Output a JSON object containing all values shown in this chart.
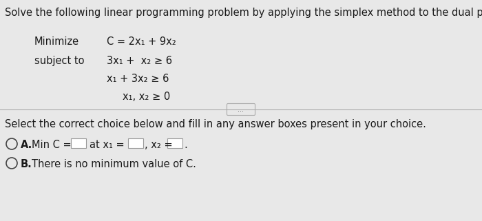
{
  "bg_color": "#e8e8e8",
  "font_color": "#1a1a1a",
  "title": "Solve the following linear programming problem by applying the simplex method to the dual problem.",
  "minimize_label": "Minimize",
  "minimize_eq": "C = 2x₁ + 9x₂",
  "subject_label": "subject to",
  "constraint1": "3x₁ +  x₂ ≥ 6",
  "constraint2": "x₁ + 3x₂ ≥ 6",
  "constraint3": "x₁, x₂ ≥ 0",
  "select_text": "Select the correct choice below and fill in any answer boxes present in your choice.",
  "choice_a_prefix": "A.",
  "choice_a_text1": "Min C =",
  "choice_a_text2": "at x₁ =",
  "choice_a_text3": ", x₂ =",
  "choice_a_period": ".",
  "choice_b_prefix": "B.",
  "choice_b_text": "There is no minimum value of C.",
  "divider_color": "#aaaaaa",
  "circle_color": "#444444",
  "box_edge_color": "#999999",
  "title_fs": 10.5,
  "body_fs": 10.5,
  "small_fs": 9.0
}
